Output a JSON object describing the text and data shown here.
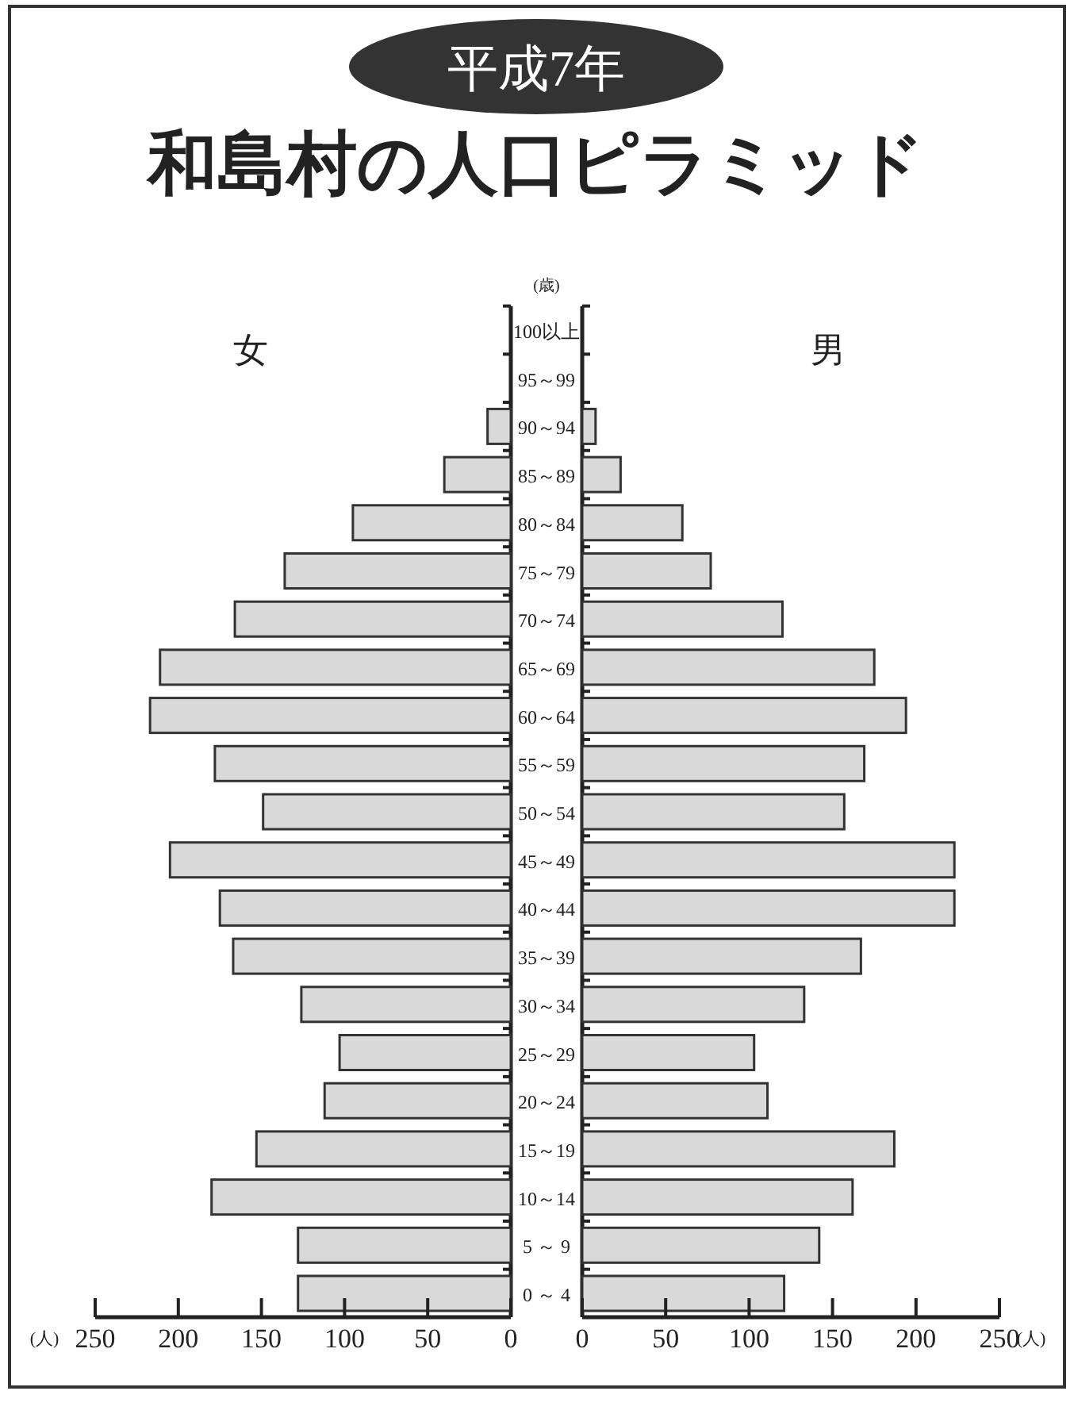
{
  "chart_data": [
    {
      "type": "bar",
      "orientation": "horizontal",
      "title": "和島村の人口ピラミッド",
      "subtitle": "平成7年",
      "xlabel": "(人)",
      "categories": [
        "100以上",
        "95～99",
        "90～94",
        "85～89",
        "80～84",
        "75～79",
        "70～74",
        "65～69",
        "60～64",
        "55～59",
        "50～54",
        "45～49",
        "40～44",
        "35～39",
        "30～34",
        "25～29",
        "20～24",
        "15～19",
        "10～14",
        "5 ～ 9",
        "0 ～ 4"
      ],
      "series": [
        {
          "name": "女",
          "color": "#d9d9d9",
          "values": [
            0,
            0,
            14,
            40,
            95,
            136,
            166,
            211,
            217,
            178,
            149,
            205,
            175,
            167,
            126,
            103,
            112,
            153,
            180,
            128,
            128
          ]
        }
      ],
      "xlim": [
        250,
        0
      ],
      "xticks": [
        250,
        200,
        150,
        100,
        50,
        0
      ]
    },
    {
      "type": "bar",
      "orientation": "horizontal",
      "xlabel": "(人)",
      "ylabel": "(歳)",
      "series": [
        {
          "name": "男",
          "color": "#d9d9d9",
          "values": [
            0,
            0,
            8,
            23,
            60,
            77,
            120,
            175,
            194,
            169,
            157,
            223,
            223,
            167,
            133,
            103,
            111,
            187,
            162,
            142,
            121
          ]
        }
      ],
      "xlim": [
        0,
        250
      ],
      "xticks": [
        0,
        50,
        100,
        150,
        200,
        250
      ]
    }
  ]
}
